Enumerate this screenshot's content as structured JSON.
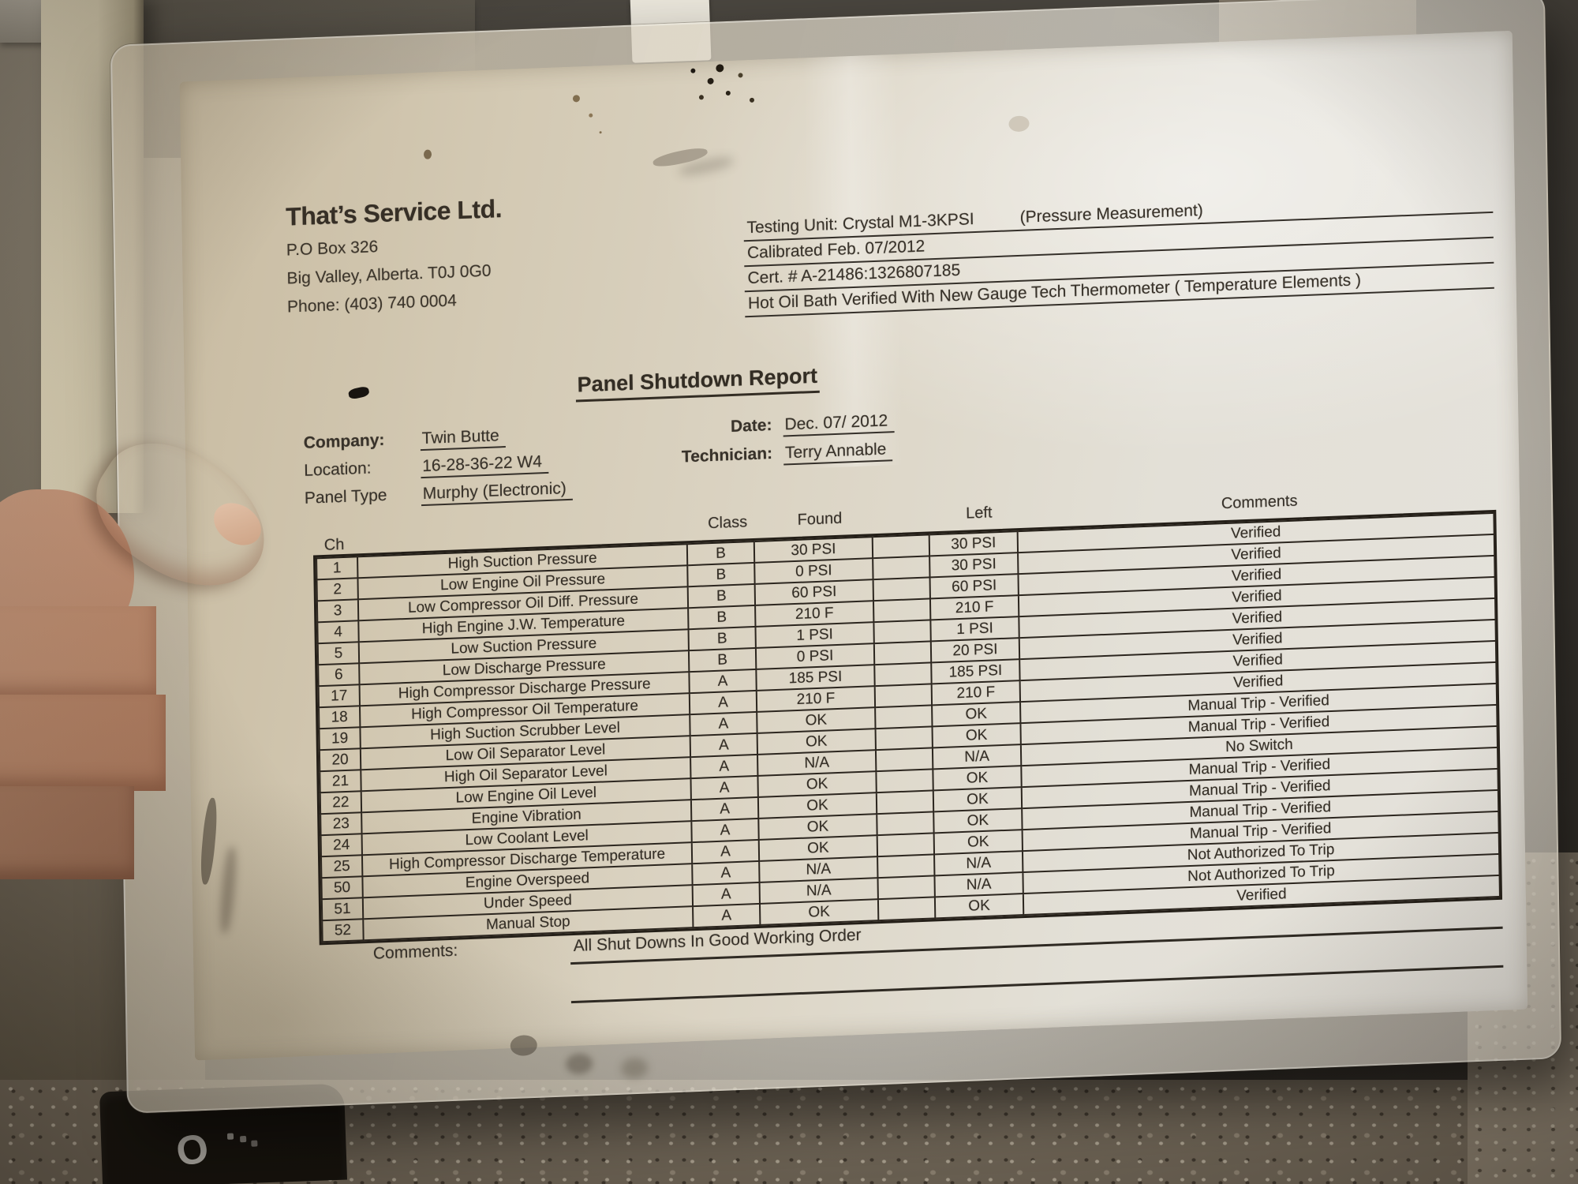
{
  "colors": {
    "paper": "#dcd5c5",
    "ink": "#3a332a",
    "table_border": "#2c261f"
  },
  "letterhead": {
    "company_name": "That’s Service Ltd.",
    "address_line1": "P.O Box 326",
    "address_line2": "Big Valley, Alberta. T0J 0G0",
    "phone": "Phone: (403) 740 0004"
  },
  "calibration": {
    "testing_unit": "Testing Unit: Crystal M1-3KPSI",
    "testing_unit_note": "(Pressure Measurement)",
    "calibrated": "Calibrated Feb. 07/2012",
    "cert": "Cert. # A-21486:1326807185",
    "verification": "Hot Oil Bath Verified With New Gauge Tech Thermometer ( Temperature Elements )"
  },
  "title": "Panel Shutdown Report",
  "job": {
    "company_label": "Company:",
    "company": "Twin Butte",
    "location_label": "Location:",
    "location": "16-28-36-22 W4",
    "panel_type_label": "Panel Type",
    "panel_type": "Murphy (Electronic)",
    "date_label": "Date:",
    "date": "Dec. 07/ 2012",
    "technician_label": "Technician:",
    "technician": "Terry Annable"
  },
  "table": {
    "headers": {
      "ch": "Ch",
      "class": "Class",
      "found": "Found",
      "left": "Left",
      "comments": "Comments"
    },
    "rows": [
      {
        "ch": "1",
        "description": "High Suction Pressure",
        "class": "B",
        "found": "30 PSI",
        "left": "30 PSI",
        "comments": "Verified"
      },
      {
        "ch": "2",
        "description": "Low Engine Oil Pressure",
        "class": "B",
        "found": "0 PSI",
        "left": "30 PSI",
        "comments": "Verified"
      },
      {
        "ch": "3",
        "description": "Low Compressor Oil Diff. Pressure",
        "class": "B",
        "found": "60 PSI",
        "left": "60 PSI",
        "comments": "Verified"
      },
      {
        "ch": "4",
        "description": "High Engine J.W. Temperature",
        "class": "B",
        "found": "210 F",
        "left": "210 F",
        "comments": "Verified"
      },
      {
        "ch": "5",
        "description": "Low Suction Pressure",
        "class": "B",
        "found": "1 PSI",
        "left": "1 PSI",
        "comments": "Verified"
      },
      {
        "ch": "6",
        "description": "Low Discharge Pressure",
        "class": "B",
        "found": "0 PSI",
        "left": "20 PSI",
        "comments": "Verified"
      },
      {
        "ch": "17",
        "description": "High Compressor Discharge Pressure",
        "class": "A",
        "found": "185 PSI",
        "left": "185 PSI",
        "comments": "Verified"
      },
      {
        "ch": "18",
        "description": "High Compressor Oil Temperature",
        "class": "A",
        "found": "210 F",
        "left": "210 F",
        "comments": "Verified"
      },
      {
        "ch": "19",
        "description": "High Suction Scrubber Level",
        "class": "A",
        "found": "OK",
        "left": "OK",
        "comments": "Manual Trip - Verified"
      },
      {
        "ch": "20",
        "description": "Low Oil Separator Level",
        "class": "A",
        "found": "OK",
        "left": "OK",
        "comments": "Manual Trip - Verified"
      },
      {
        "ch": "21",
        "description": "High Oil Separator Level",
        "class": "A",
        "found": "N/A",
        "left": "N/A",
        "comments": "No Switch"
      },
      {
        "ch": "22",
        "description": "Low Engine Oil Level",
        "class": "A",
        "found": "OK",
        "left": "OK",
        "comments": "Manual Trip - Verified"
      },
      {
        "ch": "23",
        "description": "Engine Vibration",
        "class": "A",
        "found": "OK",
        "left": "OK",
        "comments": "Manual Trip - Verified"
      },
      {
        "ch": "24",
        "description": "Low Coolant Level",
        "class": "A",
        "found": "OK",
        "left": "OK",
        "comments": "Manual Trip - Verified"
      },
      {
        "ch": "25",
        "description": "High Compressor Discharge Temperature",
        "class": "A",
        "found": "OK",
        "left": "OK",
        "comments": "Manual Trip - Verified"
      },
      {
        "ch": "50",
        "description": "Engine Overspeed",
        "class": "A",
        "found": "N/A",
        "left": "N/A",
        "comments": "Not Authorized To Trip"
      },
      {
        "ch": "51",
        "description": "Under Speed",
        "class": "A",
        "found": "N/A",
        "left": "N/A",
        "comments": "Not Authorized To Trip"
      },
      {
        "ch": "52",
        "description": "Manual Stop",
        "class": "A",
        "found": "OK",
        "left": "OK",
        "comments": "Verified"
      }
    ]
  },
  "footer": {
    "comments_label": "Comments:",
    "comments": "All Shut Downs In Good Working Order"
  },
  "background": {
    "box_letter": "O"
  }
}
